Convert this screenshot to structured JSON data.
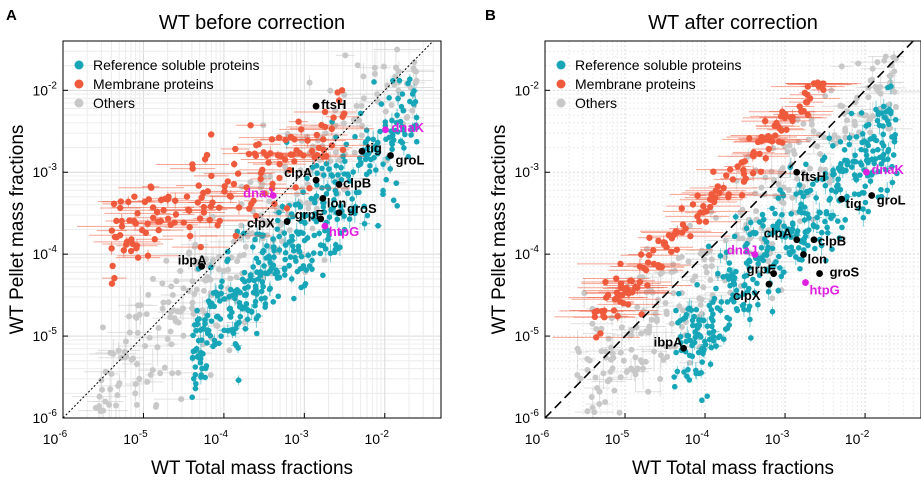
{
  "chart_data": [
    {
      "panel": "A",
      "type": "scatter",
      "title": "WT before correction",
      "xlabel": "WT Total mass fractions",
      "ylabel": "WT Pellet mass fractions",
      "xscale": "log",
      "yscale": "log",
      "xlim": [
        1e-06,
        0.05
      ],
      "ylim": [
        1e-06,
        0.04
      ],
      "xticks": [
        {
          "base": "10",
          "exp": "-6"
        },
        {
          "base": "10",
          "exp": "-5"
        },
        {
          "base": "10",
          "exp": "-4"
        },
        {
          "base": "10",
          "exp": "-3"
        },
        {
          "base": "10",
          "exp": "-2"
        }
      ],
      "yticks": [
        {
          "base": "10",
          "exp": "-6"
        },
        {
          "base": "10",
          "exp": "-5"
        },
        {
          "base": "10",
          "exp": "-4"
        },
        {
          "base": "10",
          "exp": "-3"
        },
        {
          "base": "10",
          "exp": "-2"
        }
      ],
      "diagonal": "dotted",
      "legend": [
        {
          "name": "Reference soluble proteins",
          "color": "#17a5b8"
        },
        {
          "name": "Membrane proteins",
          "color": "#f05a3c"
        },
        {
          "name": "Others",
          "color": "#c8c8c8"
        }
      ],
      "labeled_points": [
        {
          "label": "ftsH",
          "x": 0.0014,
          "y": 0.0064,
          "color": "#000000"
        },
        {
          "label": "dnaK",
          "x": 0.0102,
          "y": 0.0033,
          "color": "#e020e0"
        },
        {
          "label": "tig",
          "x": 0.0052,
          "y": 0.0018,
          "color": "#000000"
        },
        {
          "label": "groL",
          "x": 0.0118,
          "y": 0.0016,
          "color": "#000000"
        },
        {
          "label": "clpA",
          "x": 0.0014,
          "y": 0.0008,
          "color": "#000000"
        },
        {
          "label": "dnaJ",
          "x": 0.00041,
          "y": 0.00052,
          "color": "#e020e0"
        },
        {
          "label": "clpB",
          "x": 0.0027,
          "y": 0.00071,
          "color": "#000000"
        },
        {
          "label": "lon",
          "x": 0.0017,
          "y": 0.00048,
          "color": "#000000"
        },
        {
          "label": "groS",
          "x": 0.0027,
          "y": 0.00032,
          "color": "#000000"
        },
        {
          "label": "grpE",
          "x": 0.0016,
          "y": 0.00027,
          "color": "#000000"
        },
        {
          "label": "clpX",
          "x": 0.00061,
          "y": 0.00025,
          "color": "#000000"
        },
        {
          "label": "htpG",
          "x": 0.0018,
          "y": 0.00022,
          "color": "#e020e0"
        },
        {
          "label": "ibpA",
          "x": 5.3e-05,
          "y": 7.1e-05,
          "color": "#000000"
        }
      ]
    },
    {
      "panel": "B",
      "type": "scatter",
      "title": "WT after correction",
      "xlabel": "WT Total mass fractions",
      "ylabel": "WT Pellet mass fractions",
      "xscale": "log",
      "yscale": "log",
      "xlim": [
        1e-06,
        0.05
      ],
      "ylim": [
        1e-06,
        0.04
      ],
      "xticks": [
        {
          "base": "10",
          "exp": "-6"
        },
        {
          "base": "10",
          "exp": "-5"
        },
        {
          "base": "10",
          "exp": "-4"
        },
        {
          "base": "10",
          "exp": "-3"
        },
        {
          "base": "10",
          "exp": "-2"
        }
      ],
      "yticks": [
        {
          "base": "10",
          "exp": "-6"
        },
        {
          "base": "10",
          "exp": "-5"
        },
        {
          "base": "10",
          "exp": "-4"
        },
        {
          "base": "10",
          "exp": "-3"
        },
        {
          "base": "10",
          "exp": "-2"
        }
      ],
      "diagonal": "dashed",
      "legend": [
        {
          "name": "Reference soluble proteins",
          "color": "#17a5b8"
        },
        {
          "name": "Membrane proteins",
          "color": "#f05a3c"
        },
        {
          "name": "Others",
          "color": "#c8c8c8"
        }
      ],
      "labeled_points": [
        {
          "label": "ftsH",
          "x": 0.0014,
          "y": 0.001,
          "color": "#000000"
        },
        {
          "label": "dnaK",
          "x": 0.0104,
          "y": 0.001,
          "color": "#e020e0"
        },
        {
          "label": "tig",
          "x": 0.0051,
          "y": 0.00047,
          "color": "#000000"
        },
        {
          "label": "groL",
          "x": 0.0121,
          "y": 0.00052,
          "color": "#000000"
        },
        {
          "label": "clpA",
          "x": 0.0014,
          "y": 0.00015,
          "color": "#000000"
        },
        {
          "label": "clpB",
          "x": 0.0023,
          "y": 0.00015,
          "color": "#000000"
        },
        {
          "label": "dnaJ",
          "x": 0.00042,
          "y": 9.9e-05,
          "color": "#e020e0"
        },
        {
          "label": "lon",
          "x": 0.0017,
          "y": 9.9e-05,
          "color": "#000000"
        },
        {
          "label": "grpE",
          "x": 0.00072,
          "y": 5.8e-05,
          "color": "#000000"
        },
        {
          "label": "groS",
          "x": 0.0027,
          "y": 5.8e-05,
          "color": "#000000"
        },
        {
          "label": "clpX",
          "x": 0.00063,
          "y": 4.3e-05,
          "color": "#000000"
        },
        {
          "label": "htpG",
          "x": 0.0018,
          "y": 4.5e-05,
          "color": "#e020e0"
        },
        {
          "label": "ibpA",
          "x": 5.4e-05,
          "y": 7.1e-06,
          "color": "#000000"
        }
      ]
    }
  ]
}
